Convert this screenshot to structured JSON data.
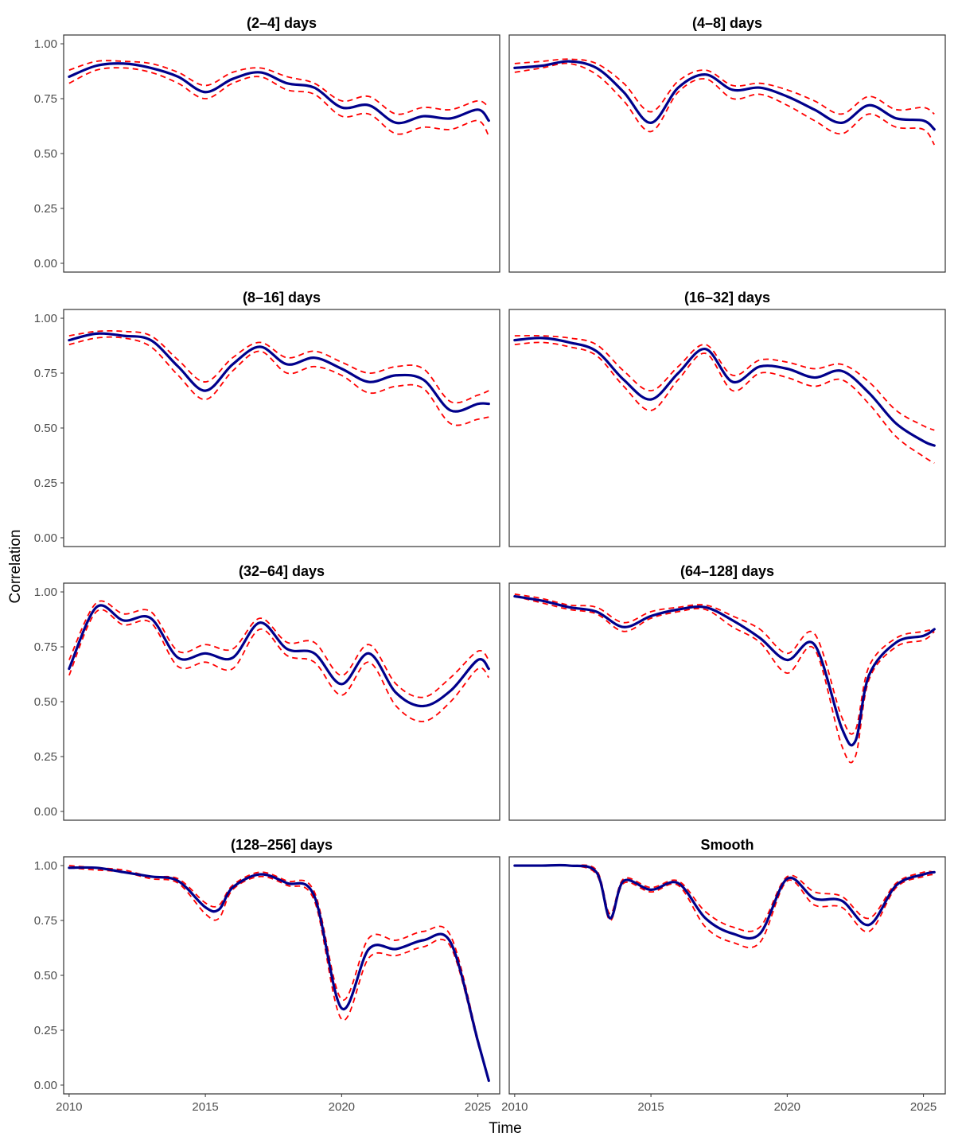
{
  "chart_data": {
    "type": "line",
    "xlabel": "Time",
    "ylabel": "Correlation",
    "xlim": [
      2009.8,
      2025.8
    ],
    "ylim": [
      -0.04,
      1.04
    ],
    "x_ticks": [
      2010,
      2015,
      2020,
      2025
    ],
    "y_ticks": [
      0,
      0.25,
      0.5,
      0.75,
      1.0
    ],
    "y_tick_labels": [
      "0.00",
      "0.25",
      "0.50",
      "0.75",
      "1.00"
    ],
    "grid": false,
    "colors": {
      "estimate": "#00008B",
      "band": "#FF0000"
    },
    "panels": [
      {
        "title": "(2–4] days",
        "x": [
          2010,
          2011,
          2012,
          2013,
          2014,
          2015,
          2016,
          2017,
          2018,
          2019,
          2020,
          2021,
          2022,
          2023,
          2024,
          2025,
          2025.4
        ],
        "value": [
          0.85,
          0.9,
          0.91,
          0.89,
          0.85,
          0.78,
          0.84,
          0.87,
          0.82,
          0.8,
          0.71,
          0.72,
          0.64,
          0.67,
          0.66,
          0.7,
          0.65
        ],
        "lower": [
          0.82,
          0.88,
          0.89,
          0.87,
          0.82,
          0.75,
          0.82,
          0.85,
          0.79,
          0.77,
          0.67,
          0.68,
          0.59,
          0.62,
          0.61,
          0.65,
          0.58
        ],
        "upper": [
          0.88,
          0.92,
          0.92,
          0.91,
          0.87,
          0.81,
          0.87,
          0.89,
          0.85,
          0.82,
          0.74,
          0.76,
          0.68,
          0.71,
          0.7,
          0.74,
          0.71
        ]
      },
      {
        "title": "(4–8] days",
        "x": [
          2010,
          2011,
          2012,
          2013,
          2014,
          2015,
          2016,
          2017,
          2018,
          2019,
          2020,
          2021,
          2022,
          2023,
          2024,
          2025,
          2025.4
        ],
        "value": [
          0.89,
          0.9,
          0.92,
          0.89,
          0.78,
          0.64,
          0.8,
          0.86,
          0.79,
          0.8,
          0.76,
          0.7,
          0.64,
          0.72,
          0.66,
          0.65,
          0.61
        ],
        "lower": [
          0.87,
          0.89,
          0.91,
          0.86,
          0.74,
          0.6,
          0.78,
          0.84,
          0.75,
          0.77,
          0.72,
          0.65,
          0.59,
          0.68,
          0.62,
          0.61,
          0.54
        ],
        "upper": [
          0.91,
          0.92,
          0.93,
          0.91,
          0.82,
          0.69,
          0.83,
          0.88,
          0.81,
          0.82,
          0.79,
          0.74,
          0.68,
          0.76,
          0.7,
          0.71,
          0.68
        ]
      },
      {
        "title": "(8–16] days",
        "x": [
          2010,
          2011,
          2012,
          2013,
          2014,
          2015,
          2016,
          2017,
          2018,
          2019,
          2020,
          2021,
          2022,
          2023,
          2024,
          2025,
          2025.4
        ],
        "value": [
          0.9,
          0.93,
          0.92,
          0.9,
          0.78,
          0.67,
          0.79,
          0.87,
          0.79,
          0.82,
          0.77,
          0.71,
          0.74,
          0.72,
          0.58,
          0.61,
          0.61
        ],
        "lower": [
          0.88,
          0.91,
          0.91,
          0.87,
          0.74,
          0.63,
          0.76,
          0.85,
          0.75,
          0.78,
          0.74,
          0.66,
          0.69,
          0.68,
          0.52,
          0.54,
          0.55
        ],
        "upper": [
          0.92,
          0.94,
          0.94,
          0.92,
          0.81,
          0.71,
          0.82,
          0.89,
          0.82,
          0.85,
          0.8,
          0.75,
          0.78,
          0.77,
          0.62,
          0.65,
          0.67
        ]
      },
      {
        "title": "(16–32] days",
        "x": [
          2010,
          2011,
          2012,
          2013,
          2014,
          2015,
          2016,
          2017,
          2018,
          2019,
          2020,
          2021,
          2022,
          2023,
          2024,
          2025,
          2025.4
        ],
        "value": [
          0.9,
          0.91,
          0.89,
          0.85,
          0.72,
          0.63,
          0.75,
          0.86,
          0.71,
          0.78,
          0.77,
          0.73,
          0.76,
          0.66,
          0.52,
          0.44,
          0.42
        ],
        "lower": [
          0.88,
          0.89,
          0.87,
          0.83,
          0.69,
          0.58,
          0.72,
          0.84,
          0.67,
          0.75,
          0.73,
          0.69,
          0.72,
          0.61,
          0.46,
          0.37,
          0.34
        ],
        "upper": [
          0.92,
          0.92,
          0.91,
          0.88,
          0.76,
          0.67,
          0.78,
          0.88,
          0.74,
          0.81,
          0.8,
          0.77,
          0.79,
          0.71,
          0.58,
          0.51,
          0.49
        ]
      },
      {
        "title": "(32–64] days",
        "x": [
          2010,
          2011,
          2012,
          2013,
          2014,
          2015,
          2016,
          2017,
          2018,
          2019,
          2020,
          2021,
          2022,
          2023,
          2024,
          2025,
          2025.4
        ],
        "value": [
          0.65,
          0.93,
          0.87,
          0.88,
          0.7,
          0.72,
          0.7,
          0.86,
          0.74,
          0.72,
          0.58,
          0.72,
          0.54,
          0.48,
          0.55,
          0.69,
          0.65
        ],
        "lower": [
          0.62,
          0.91,
          0.85,
          0.86,
          0.66,
          0.68,
          0.65,
          0.83,
          0.71,
          0.68,
          0.53,
          0.68,
          0.48,
          0.41,
          0.5,
          0.65,
          0.61
        ],
        "upper": [
          0.69,
          0.95,
          0.9,
          0.91,
          0.73,
          0.76,
          0.74,
          0.88,
          0.77,
          0.77,
          0.62,
          0.76,
          0.58,
          0.52,
          0.61,
          0.73,
          0.69
        ]
      },
      {
        "title": "(64–128] days",
        "x": [
          2010,
          2011,
          2012,
          2013,
          2014,
          2015,
          2016,
          2017,
          2018,
          2019,
          2020,
          2021,
          2022,
          2022.5,
          2023,
          2024,
          2025,
          2025.4
        ],
        "value": [
          0.98,
          0.96,
          0.93,
          0.91,
          0.84,
          0.89,
          0.92,
          0.93,
          0.87,
          0.79,
          0.69,
          0.76,
          0.38,
          0.32,
          0.62,
          0.77,
          0.8,
          0.83
        ],
        "lower": [
          0.98,
          0.95,
          0.92,
          0.9,
          0.82,
          0.88,
          0.91,
          0.92,
          0.84,
          0.77,
          0.63,
          0.74,
          0.3,
          0.25,
          0.6,
          0.75,
          0.78,
          0.82
        ],
        "upper": [
          0.99,
          0.97,
          0.94,
          0.93,
          0.86,
          0.91,
          0.93,
          0.94,
          0.89,
          0.83,
          0.72,
          0.81,
          0.43,
          0.37,
          0.66,
          0.79,
          0.82,
          0.83
        ]
      },
      {
        "title": "(128–256] days",
        "x": [
          2010,
          2011,
          2012,
          2013,
          2014,
          2015,
          2015.5,
          2016,
          2017,
          2018,
          2019,
          2020,
          2021,
          2022,
          2023,
          2024,
          2025,
          2025.4
        ],
        "value": [
          0.99,
          0.99,
          0.97,
          0.95,
          0.93,
          0.81,
          0.8,
          0.9,
          0.96,
          0.92,
          0.86,
          0.35,
          0.62,
          0.62,
          0.66,
          0.65,
          0.2,
          0.02
        ],
        "lower": [
          0.99,
          0.98,
          0.97,
          0.94,
          0.92,
          0.78,
          0.76,
          0.89,
          0.95,
          0.91,
          0.84,
          0.3,
          0.58,
          0.59,
          0.63,
          0.63,
          0.19,
          0.02
        ],
        "upper": [
          1.0,
          0.99,
          0.98,
          0.95,
          0.94,
          0.83,
          0.82,
          0.91,
          0.97,
          0.93,
          0.88,
          0.39,
          0.67,
          0.66,
          0.7,
          0.68,
          0.21,
          0.02
        ]
      },
      {
        "title": "Smooth",
        "x": [
          2010,
          2011,
          2012,
          2013,
          2013.5,
          2014,
          2015,
          2016,
          2017,
          2018,
          2019,
          2020,
          2021,
          2022,
          2023,
          2024,
          2025,
          2025.4
        ],
        "value": [
          1.0,
          1.0,
          1.0,
          0.97,
          0.76,
          0.93,
          0.89,
          0.92,
          0.76,
          0.69,
          0.69,
          0.94,
          0.85,
          0.84,
          0.73,
          0.91,
          0.96,
          0.97
        ],
        "lower": [
          1.0,
          1.0,
          1.0,
          0.96,
          0.75,
          0.92,
          0.88,
          0.91,
          0.72,
          0.65,
          0.65,
          0.93,
          0.82,
          0.81,
          0.7,
          0.9,
          0.95,
          0.96
        ],
        "upper": [
          1.0,
          1.0,
          1.0,
          0.98,
          0.78,
          0.94,
          0.9,
          0.93,
          0.79,
          0.72,
          0.72,
          0.95,
          0.88,
          0.86,
          0.76,
          0.92,
          0.97,
          0.97
        ]
      }
    ]
  }
}
